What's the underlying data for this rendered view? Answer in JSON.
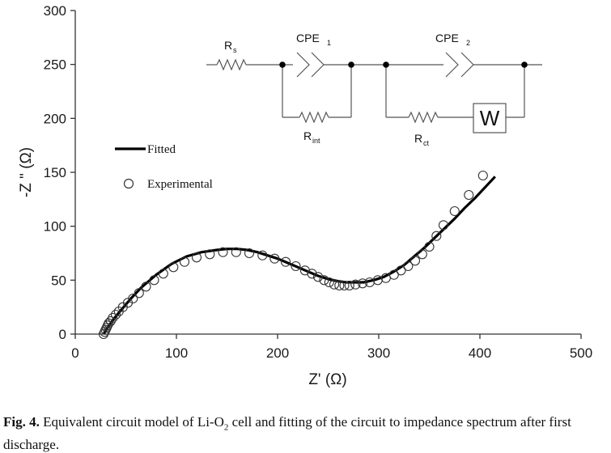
{
  "chart_data": {
    "type": "scatter",
    "xlabel": "Z' (Ω)",
    "ylabel": "-Z \" (Ω)",
    "xlim": [
      0,
      500
    ],
    "ylim": [
      0,
      300
    ],
    "xticks": [
      "0",
      "100",
      "200",
      "300",
      "400",
      "500"
    ],
    "yticks": [
      "0",
      "50",
      "100",
      "150",
      "200",
      "250",
      "300"
    ],
    "grid": false,
    "legend_position": "middle-left",
    "series": [
      {
        "name": "Fitted",
        "style": "line",
        "color": "#000000",
        "x": [
          28,
          32,
          38,
          45,
          55,
          65,
          80,
          95,
          110,
          125,
          140,
          150,
          160,
          170,
          180,
          190,
          200,
          210,
          220,
          230,
          240,
          250,
          260,
          268,
          275,
          285,
          295,
          305,
          315,
          325,
          335,
          345,
          355,
          365,
          375,
          385,
          395,
          405,
          415
        ],
        "y": [
          0,
          6,
          14,
          22,
          33,
          43,
          55,
          65,
          72,
          76,
          78,
          79,
          79,
          78,
          76,
          73,
          70,
          66,
          62,
          58,
          54,
          51,
          49,
          48,
          48,
          48,
          50,
          53,
          58,
          64,
          72,
          80,
          89,
          98,
          107,
          117,
          126,
          136,
          146
        ]
      },
      {
        "name": "Experimental",
        "style": "open-circle",
        "color": "#000000",
        "x": [
          28,
          29,
          30,
          31,
          32,
          33,
          35,
          37,
          40,
          43,
          47,
          52,
          57,
          63,
          70,
          78,
          87,
          97,
          108,
          120,
          133,
          146,
          159,
          172,
          185,
          197,
          208,
          218,
          227,
          234,
          240,
          246,
          251,
          256,
          261,
          266,
          271,
          277,
          284,
          291,
          299,
          307,
          315,
          322,
          329,
          336,
          343,
          350,
          357,
          364,
          375,
          389,
          403
        ],
        "y": [
          0,
          2,
          4,
          6,
          8,
          10,
          12,
          15,
          18,
          21,
          25,
          29,
          33,
          38,
          44,
          50,
          56,
          62,
          67,
          71,
          74,
          76,
          76,
          75,
          73,
          70,
          67,
          63,
          59,
          56,
          53,
          50,
          48,
          46,
          45,
          45,
          45,
          46,
          47,
          48,
          50,
          52,
          55,
          59,
          63,
          68,
          74,
          81,
          91,
          101,
          114,
          129,
          147
        ]
      }
    ],
    "legend": [
      {
        "label": "Fitted",
        "symbol": "line"
      },
      {
        "label": "Experimental",
        "symbol": "open-circle"
      }
    ],
    "inset_circuit": {
      "labels": {
        "rs": "R",
        "rs_sub": "s",
        "cpe1": "CPE",
        "cpe1_sub": "1",
        "cpe2": "CPE",
        "cpe2_sub": "2",
        "rint": "R",
        "rint_sub": "int",
        "rct": "R",
        "rct_sub": "ct",
        "warburg": "W"
      }
    }
  },
  "caption": {
    "label": "Fig. 4.",
    "text_before_sub": " Equivalent circuit model of Li-O",
    "sub": "2",
    "text_after_sub": " cell and fitting of the circuit to impedance spectrum after first discharge."
  }
}
